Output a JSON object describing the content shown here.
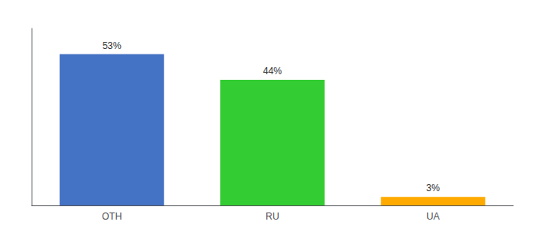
{
  "chart_data": {
    "type": "bar",
    "categories": [
      "OTH",
      "RU",
      "UA"
    ],
    "values": [
      53,
      44,
      3
    ],
    "value_labels": [
      "53%",
      "44%",
      "3%"
    ],
    "colors": [
      "#4472c4",
      "#33cc33",
      "#ffaa00"
    ],
    "ylim": [
      0,
      62
    ],
    "data_labels": true,
    "grid": false,
    "tick_labels": "x"
  }
}
